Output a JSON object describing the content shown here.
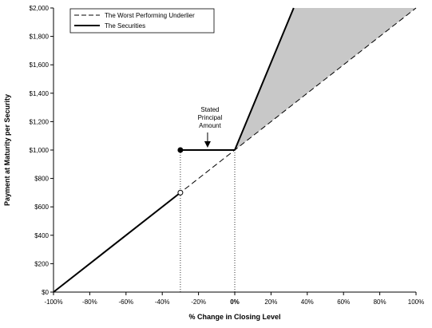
{
  "chart_data": {
    "type": "line",
    "xlabel": "% Change in Closing Level",
    "ylabel": "Payment at Maturity per Security",
    "xlim": [
      -100,
      100
    ],
    "ylim": [
      0,
      2000
    ],
    "x_ticks": [
      {
        "value": -100,
        "label": "-100%",
        "bold": false
      },
      {
        "value": -80,
        "label": "-80%",
        "bold": false
      },
      {
        "value": -60,
        "label": "-60%",
        "bold": false
      },
      {
        "value": -40,
        "label": "-40%",
        "bold": false
      },
      {
        "value": -20,
        "label": "-20%",
        "bold": false
      },
      {
        "value": 0,
        "label": "0%",
        "bold": true
      },
      {
        "value": 20,
        "label": "20%",
        "bold": false
      },
      {
        "value": 40,
        "label": "40%",
        "bold": false
      },
      {
        "value": 60,
        "label": "60%",
        "bold": false
      },
      {
        "value": 80,
        "label": "80%",
        "bold": false
      },
      {
        "value": 100,
        "label": "100%",
        "bold": false
      }
    ],
    "y_ticks": [
      {
        "value": 0,
        "label": "$0"
      },
      {
        "value": 200,
        "label": "$200"
      },
      {
        "value": 400,
        "label": "$400"
      },
      {
        "value": 600,
        "label": "$600"
      },
      {
        "value": 800,
        "label": "$800"
      },
      {
        "value": 1000,
        "label": "$1,000"
      },
      {
        "value": 1200,
        "label": "$1,200"
      },
      {
        "value": 1400,
        "label": "$1,400"
      },
      {
        "value": 1600,
        "label": "$1,600"
      },
      {
        "value": 1800,
        "label": "$1,800"
      },
      {
        "value": 2000,
        "label": "$2,000"
      }
    ],
    "grid": false,
    "legend_position": "top-left",
    "series": [
      {
        "name": "The Worst Performing Underlier",
        "style": "dashed",
        "color": "#000000",
        "x": [
          -100,
          100
        ],
        "y": [
          0,
          2000
        ]
      },
      {
        "name": "The Securities",
        "style": "solid",
        "color": "#000000",
        "segments": [
          {
            "x": [
              -100,
              -30
            ],
            "y": [
              0,
              700
            ]
          },
          {
            "x": [
              -30,
              0
            ],
            "y": [
              1000,
              1000
            ]
          },
          {
            "x": [
              0,
              32.5
            ],
            "y": [
              1000,
              2000
            ]
          }
        ]
      }
    ],
    "shaded_region": {
      "color": "#c8c8c8",
      "polygon_x": [
        0,
        32.5,
        100
      ],
      "polygon_y": [
        1000,
        2000,
        2000
      ]
    },
    "markers": [
      {
        "x": -30,
        "y": 1000,
        "fill": "filled"
      },
      {
        "x": -30,
        "y": 700,
        "fill": "hollow"
      }
    ],
    "reference_lines": [
      {
        "x": -30,
        "y_from": 0,
        "y_to": 1000,
        "style": "dotted"
      },
      {
        "x": 0,
        "y_from": 0,
        "y_to": 1000,
        "style": "dotted"
      }
    ],
    "annotation": {
      "lines": [
        "Stated",
        "Principal",
        "Amount"
      ],
      "arrow_to_x": -15,
      "arrow_to_y": 1000
    }
  }
}
